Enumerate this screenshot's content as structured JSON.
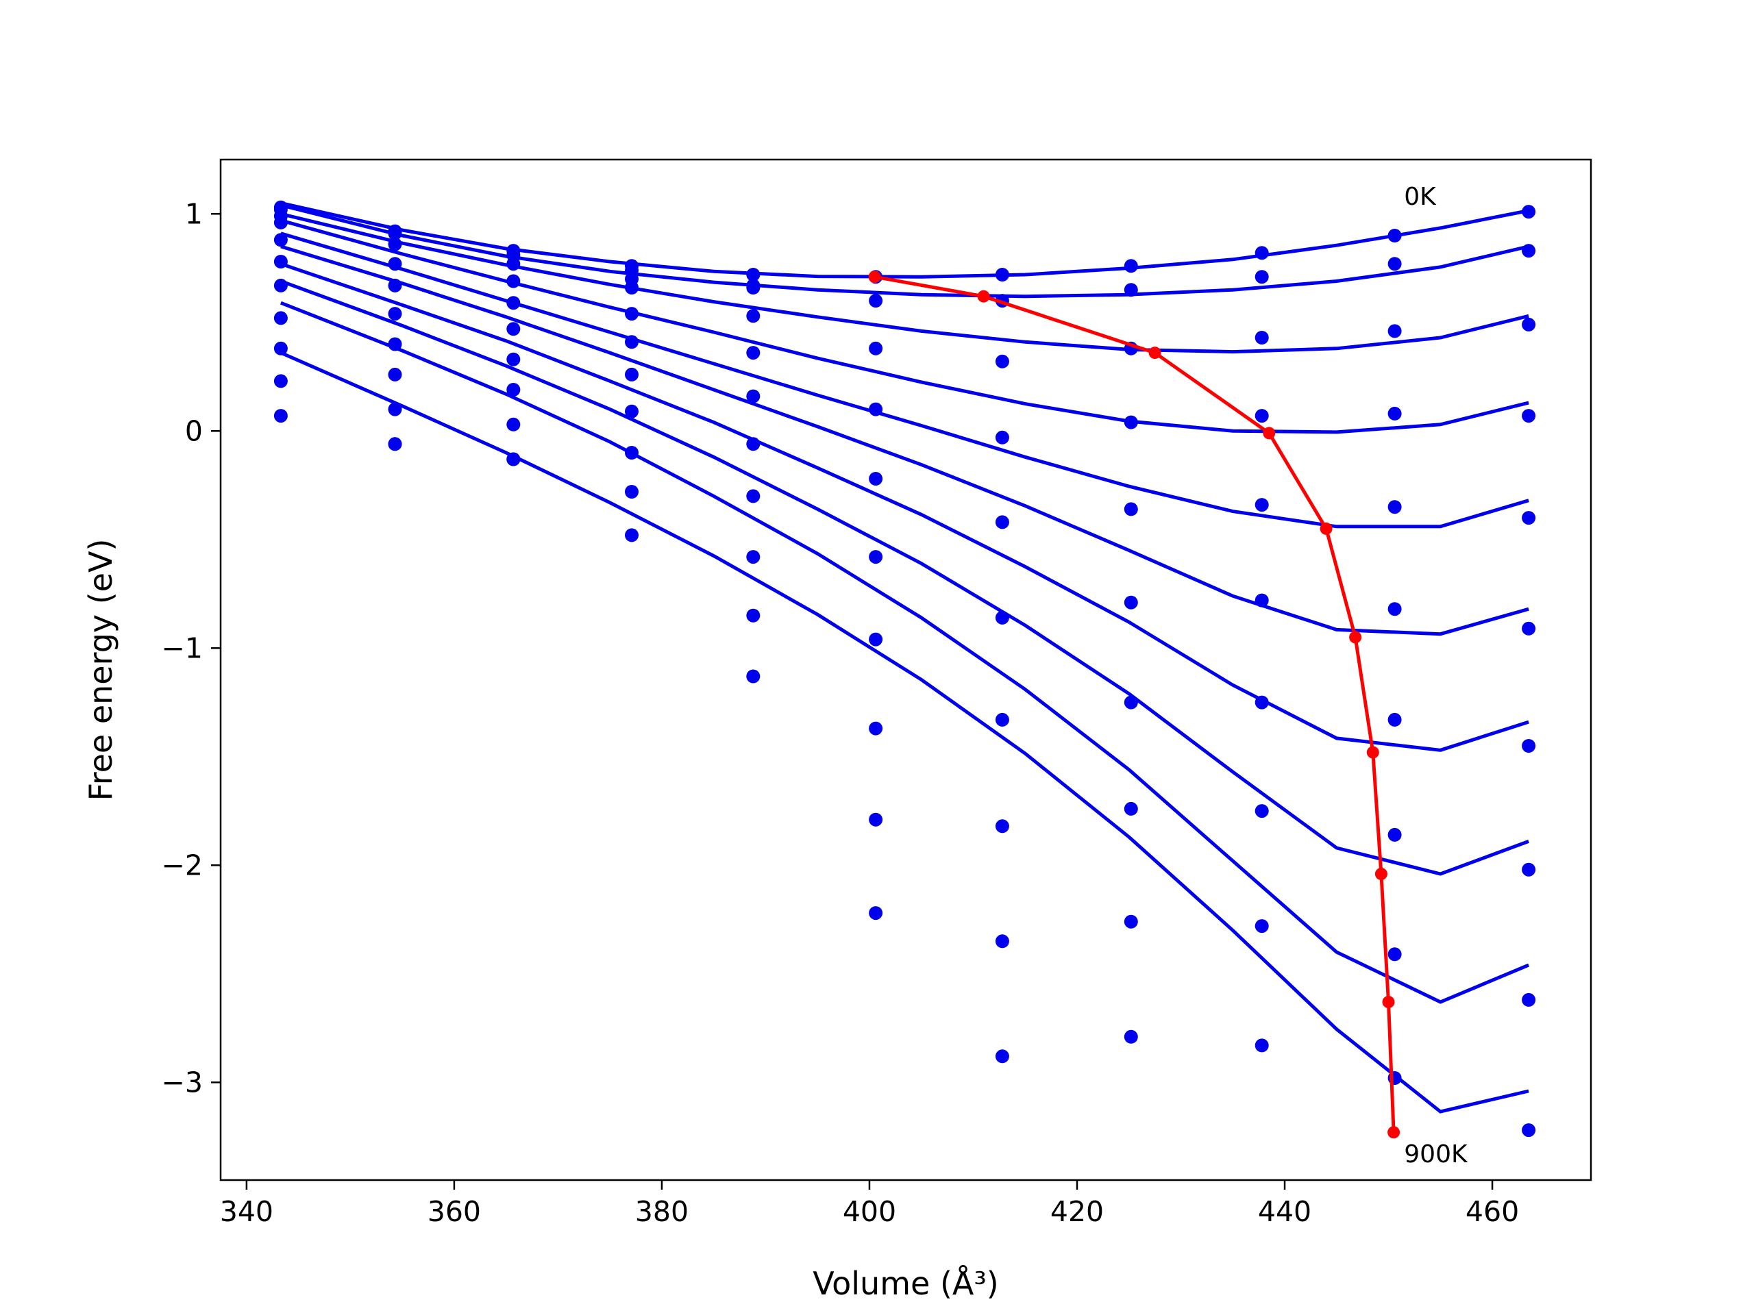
{
  "chart_data": {
    "type": "line",
    "xlabel": "Volume (Å³)",
    "ylabel": "Free energy (eV)",
    "xlim": [
      337.5,
      469.5
    ],
    "ylim": [
      -3.45,
      1.25
    ],
    "xticks": [
      340,
      360,
      380,
      400,
      420,
      440,
      460
    ],
    "yticks": [
      1,
      0,
      -1,
      -2,
      -3
    ],
    "ytick_labels": [
      "1",
      "0",
      "−1",
      "−2",
      "−3"
    ],
    "grid": false,
    "legend": "none",
    "colors": {
      "series": "#0000ee",
      "minimum_path": "#ff0000"
    },
    "annotations": [
      {
        "text": "0K",
        "x": 451.5,
        "y": 1.08
      },
      {
        "text": "900K",
        "x": 451.5,
        "y": -3.33
      }
    ],
    "volumes": [
      343.3,
      354.3,
      365.7,
      377.1,
      388.8,
      400.6,
      412.8,
      425.2,
      437.8,
      450.6,
      463.5
    ],
    "series": [
      {
        "name": "0K",
        "points": [
          1.03,
          0.92,
          0.83,
          0.76,
          0.72,
          0.71,
          0.72,
          0.76,
          0.82,
          0.9,
          1.01
        ],
        "curve_x": [
          343.3,
          355,
          365,
          375,
          385,
          395,
          405,
          415,
          425,
          435,
          445,
          455,
          463.5
        ],
        "curve_y": [
          1.05,
          0.925,
          0.84,
          0.78,
          0.735,
          0.712,
          0.71,
          0.72,
          0.75,
          0.79,
          0.855,
          0.935,
          1.015
        ]
      },
      {
        "points": [
          1.02,
          0.91,
          0.81,
          0.74,
          0.66,
          0.6,
          0.6,
          0.65,
          0.71,
          0.77,
          0.83
        ],
        "curve_x": [
          343.3,
          355,
          365,
          375,
          385,
          395,
          405,
          415,
          425,
          435,
          445,
          455,
          463.5
        ],
        "curve_y": [
          1.04,
          0.9,
          0.805,
          0.735,
          0.685,
          0.65,
          0.628,
          0.62,
          0.628,
          0.65,
          0.69,
          0.755,
          0.85
        ]
      },
      {
        "points": [
          0.99,
          0.86,
          0.77,
          0.7,
          0.67,
          0.38,
          0.32,
          0.38,
          0.43,
          0.46,
          0.49
        ],
        "curve_x": [
          343.3,
          355,
          365,
          375,
          385,
          395,
          405,
          415,
          425,
          435,
          445,
          455,
          463.5
        ],
        "curve_y": [
          1.0,
          0.865,
          0.765,
          0.675,
          0.595,
          0.525,
          0.46,
          0.41,
          0.375,
          0.365,
          0.38,
          0.43,
          0.53
        ]
      },
      {
        "points": [
          0.96,
          0.77,
          0.69,
          0.66,
          0.53,
          0.1,
          -0.03,
          0.04,
          0.07,
          0.08,
          0.07
        ],
        "curve_x": [
          343.3,
          355,
          365,
          375,
          385,
          395,
          405,
          415,
          425,
          435,
          445,
          455,
          463.5
        ],
        "curve_y": [
          0.97,
          0.815,
          0.69,
          0.57,
          0.455,
          0.335,
          0.225,
          0.125,
          0.045,
          0.0,
          -0.005,
          0.03,
          0.13
        ]
      },
      {
        "points": [
          0.88,
          0.67,
          0.59,
          0.54,
          0.36,
          -0.22,
          -0.42,
          -0.36,
          -0.34,
          -0.35,
          -0.4
        ],
        "curve_x": [
          343.3,
          355,
          365,
          375,
          385,
          395,
          405,
          415,
          425,
          435,
          445,
          455,
          463.5
        ],
        "curve_y": [
          0.91,
          0.745,
          0.6,
          0.455,
          0.31,
          0.165,
          0.025,
          -0.12,
          -0.255,
          -0.37,
          -0.44,
          -0.44,
          -0.32
        ]
      },
      {
        "points": [
          0.78,
          0.54,
          0.47,
          0.41,
          0.16,
          -0.58,
          -0.86,
          -0.79,
          -0.78,
          -0.82,
          -0.91
        ],
        "curve_x": [
          343.3,
          355,
          365,
          375,
          385,
          395,
          405,
          415,
          425,
          435,
          445,
          455,
          463.5
        ],
        "curve_y": [
          0.85,
          0.68,
          0.525,
          0.36,
          0.19,
          0.02,
          -0.155,
          -0.345,
          -0.55,
          -0.76,
          -0.915,
          -0.935,
          -0.82
        ]
      },
      {
        "points": [
          0.67,
          0.4,
          0.33,
          0.26,
          -0.06,
          -0.96,
          -1.33,
          -1.25,
          -1.25,
          -1.33,
          -1.45
        ],
        "curve_x": [
          343.3,
          355,
          365,
          375,
          385,
          395,
          405,
          415,
          425,
          435,
          445,
          455,
          463.5
        ],
        "curve_y": [
          0.77,
          0.58,
          0.415,
          0.23,
          0.04,
          -0.17,
          -0.385,
          -0.625,
          -0.88,
          -1.17,
          -1.415,
          -1.47,
          -1.34
        ]
      },
      {
        "points": [
          0.52,
          0.26,
          0.19,
          0.09,
          -0.3,
          -1.37,
          -1.82,
          -1.74,
          -1.75,
          -1.86,
          -2.02
        ],
        "curve_x": [
          343.3,
          355,
          365,
          375,
          385,
          395,
          405,
          415,
          425,
          435,
          445,
          455,
          463.5
        ],
        "curve_y": [
          0.69,
          0.485,
          0.3,
          0.1,
          -0.12,
          -0.36,
          -0.61,
          -0.895,
          -1.21,
          -1.57,
          -1.92,
          -2.04,
          -1.89
        ]
      },
      {
        "points": [
          0.38,
          0.1,
          0.03,
          -0.1,
          -0.58,
          -1.79,
          -2.35,
          -2.26,
          -2.28,
          -2.41,
          -2.62
        ],
        "curve_x": [
          343.3,
          355,
          365,
          375,
          385,
          395,
          405,
          415,
          425,
          435,
          445,
          455,
          463.5
        ],
        "curve_y": [
          0.59,
          0.37,
          0.17,
          -0.05,
          -0.3,
          -0.565,
          -0.86,
          -1.19,
          -1.56,
          -1.98,
          -2.4,
          -2.63,
          -2.46
        ]
      },
      {
        "name": "900K",
        "points": [
          0.23,
          -0.06,
          -0.13,
          -0.28,
          -0.85,
          -2.22,
          -2.88,
          -2.79,
          -2.83,
          -2.98,
          -3.22
        ],
        "curve_x": [
          343.3,
          355,
          365,
          375,
          385,
          395,
          405,
          415,
          425,
          435,
          445,
          455,
          463.5
        ],
        "curve_y": [
          0.36,
          0.115,
          -0.1,
          -0.33,
          -0.575,
          -0.845,
          -1.145,
          -1.485,
          -1.87,
          -2.3,
          -2.755,
          -3.135,
          -3.04
        ]
      },
      {
        "points": [
          0.07,
          -0.06,
          -0.13,
          -0.48,
          -1.13
        ],
        "x_index": [
          0,
          1,
          2,
          3,
          4
        ],
        "no_curve": true
      }
    ],
    "minimum_path": {
      "x": [
        400.5,
        411.0,
        427.5,
        438.5,
        444.0,
        446.8,
        448.5,
        449.3,
        450.0,
        450.5
      ],
      "y": [
        0.71,
        0.62,
        0.36,
        -0.01,
        -0.45,
        -0.95,
        -1.48,
        -2.04,
        -2.63,
        -3.23
      ]
    }
  }
}
